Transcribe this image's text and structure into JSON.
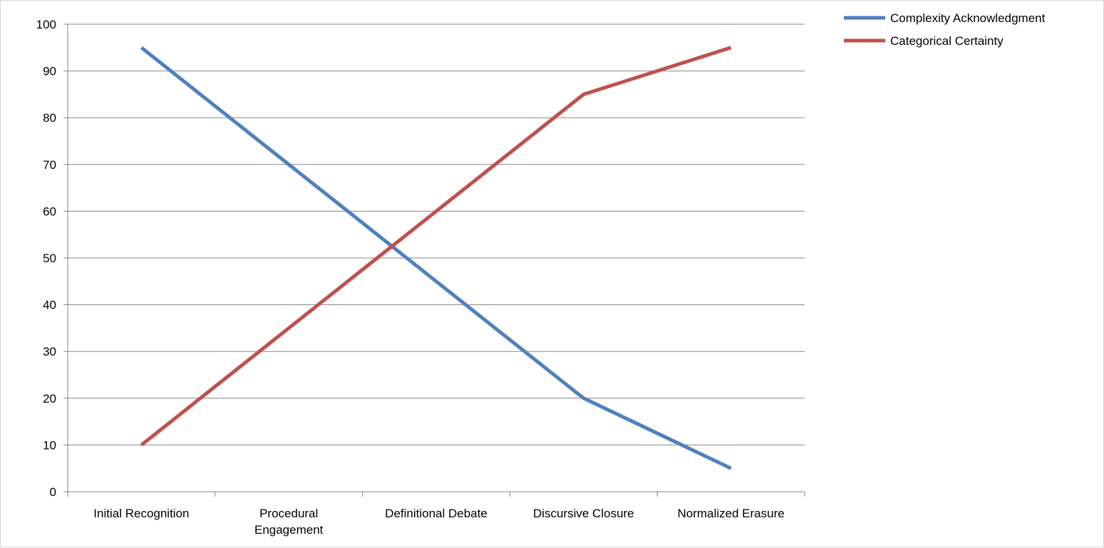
{
  "chart_data": {
    "type": "line",
    "title": "",
    "xlabel": "",
    "ylabel": "",
    "categories": [
      [
        "Initial Recognition"
      ],
      [
        "Procedural",
        "Engagement"
      ],
      [
        "Definitional Debate"
      ],
      [
        "Discursive Closure"
      ],
      [
        "Normalized Erasure"
      ]
    ],
    "ylim": [
      0,
      100
    ],
    "yticks": [
      0,
      10,
      20,
      30,
      40,
      50,
      60,
      70,
      80,
      90,
      100
    ],
    "grid": true,
    "legend_position": "top-right",
    "series": [
      {
        "name": "Complexity Acknowledgment",
        "color": "#4f81bd",
        "values": [
          95,
          70,
          45,
          20,
          5
        ]
      },
      {
        "name": "Categorical Certainty",
        "color": "#c0504d",
        "values": [
          10,
          35,
          60,
          85,
          95
        ]
      }
    ]
  }
}
